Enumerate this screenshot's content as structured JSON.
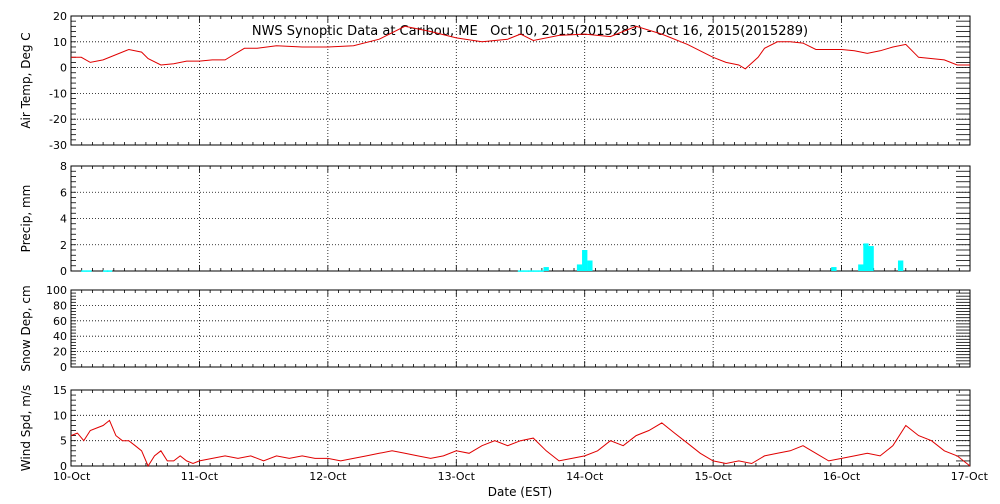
{
  "title": "NWS Synoptic Data at Caribou, ME   Oct 10, 2015(2015283) - Oct 16, 2015(2015289)",
  "x_axis": {
    "label": "Date (EST)",
    "tick_labels": [
      "10-Oct",
      "11-Oct",
      "12-Oct",
      "13-Oct",
      "14-Oct",
      "15-Oct",
      "16-Oct",
      "17-Oct"
    ],
    "range_days": [
      0,
      7
    ]
  },
  "colors": {
    "temp": "#e00000",
    "precip": "#00ffff",
    "wind": "#e00000",
    "axis": "#000000",
    "background": "#ffffff"
  },
  "chart_data": [
    {
      "type": "line",
      "ylabel": "Air Temp, Deg C",
      "ylim": [
        -30,
        20
      ],
      "yticks": [
        -30,
        -20,
        -10,
        0,
        10,
        20
      ],
      "grid": true,
      "series": [
        {
          "x": [
            0,
            0.08,
            0.15,
            0.25,
            0.45,
            0.55,
            0.6,
            0.7,
            0.8,
            0.9,
            1.0,
            1.1,
            1.2,
            1.25,
            1.35,
            1.45,
            1.6,
            1.8,
            2.0,
            2.2,
            2.4,
            2.6,
            2.8,
            3.0,
            3.2,
            3.4,
            3.5,
            3.6,
            3.8,
            4.0,
            4.2,
            4.4,
            4.6,
            4.8,
            5.0,
            5.1,
            5.2,
            5.25,
            5.35,
            5.4,
            5.5,
            5.6,
            5.7,
            5.8,
            5.9,
            6.0,
            6.1,
            6.2,
            6.3,
            6.4,
            6.5,
            6.6,
            6.8,
            6.9,
            7.0
          ],
          "y": [
            4,
            4,
            2,
            3,
            7,
            6,
            3.5,
            1,
            1.5,
            2.5,
            2.5,
            3,
            3,
            4.5,
            7.5,
            7.5,
            8.5,
            8,
            8,
            8.5,
            11,
            16,
            14,
            11.5,
            10,
            11,
            13,
            10.5,
            12.5,
            13,
            12,
            16,
            13,
            9,
            4,
            2,
            1,
            -0.5,
            4,
            7.5,
            10,
            10,
            9.5,
            7,
            7,
            7,
            6.5,
            5.5,
            6.5,
            8,
            9,
            4,
            3,
            1,
            1
          ]
        }
      ]
    },
    {
      "type": "bar",
      "ylabel": "Precip, mm",
      "ylim": [
        0,
        8
      ],
      "yticks": [
        0,
        2,
        4,
        6,
        8
      ],
      "grid": true,
      "bar_width_days": 0.0417,
      "x": [
        0.1,
        0.14,
        0.27,
        0.3,
        3.5,
        3.54,
        3.58,
        3.62,
        3.66,
        3.7,
        3.96,
        4.0,
        4.04,
        5.94,
        6.15,
        6.19,
        6.23,
        6.46
      ],
      "values": [
        0.05,
        0.05,
        0.05,
        0.05,
        0.05,
        0.05,
        0.05,
        0.05,
        0.05,
        0.3,
        0.5,
        1.6,
        0.8,
        0.3,
        0.5,
        2.1,
        1.9,
        0.8
      ]
    },
    {
      "type": "line",
      "ylabel": "Snow Dep, cm",
      "ylim": [
        0,
        100
      ],
      "yticks": [
        0,
        20,
        40,
        60,
        80,
        100
      ],
      "grid": true,
      "series": []
    },
    {
      "type": "line",
      "ylabel": "Wind Spd, m/s",
      "ylim": [
        0,
        15
      ],
      "yticks": [
        0,
        5,
        10,
        15
      ],
      "grid": true,
      "series": [
        {
          "x": [
            0,
            0.05,
            0.1,
            0.15,
            0.2,
            0.25,
            0.3,
            0.35,
            0.4,
            0.45,
            0.5,
            0.55,
            0.6,
            0.65,
            0.7,
            0.75,
            0.8,
            0.85,
            0.9,
            0.95,
            1.0,
            1.1,
            1.2,
            1.3,
            1.4,
            1.5,
            1.6,
            1.7,
            1.8,
            1.9,
            2.0,
            2.1,
            2.2,
            2.3,
            2.4,
            2.5,
            2.6,
            2.7,
            2.8,
            2.9,
            3.0,
            3.1,
            3.2,
            3.3,
            3.4,
            3.5,
            3.6,
            3.7,
            3.8,
            3.9,
            4.0,
            4.1,
            4.2,
            4.3,
            4.4,
            4.5,
            4.6,
            4.7,
            4.8,
            4.9,
            5.0,
            5.1,
            5.2,
            5.3,
            5.4,
            5.5,
            5.6,
            5.7,
            5.8,
            5.9,
            6.0,
            6.1,
            6.2,
            6.3,
            6.4,
            6.5,
            6.6,
            6.7,
            6.8,
            6.9,
            7.0
          ],
          "y": [
            6,
            6.5,
            5,
            7,
            7.5,
            8,
            9,
            6,
            5,
            5,
            4,
            3,
            0,
            2,
            3,
            1,
            1,
            2,
            1,
            0.5,
            1,
            1.5,
            2,
            1.5,
            2,
            1,
            2,
            1.5,
            2,
            1.5,
            1.5,
            1,
            1.5,
            2,
            2.5,
            3,
            2.5,
            2,
            1.5,
            2,
            3,
            2.5,
            4,
            5,
            4,
            5,
            5.5,
            3,
            1,
            1.5,
            2,
            3,
            5,
            4,
            6,
            7,
            8.5,
            6.5,
            4.5,
            2.5,
            1,
            0.5,
            1,
            0.5,
            2,
            2.5,
            3,
            4,
            2.5,
            1,
            1.5,
            2,
            2.5,
            2,
            4,
            8,
            6,
            5,
            3,
            2,
            0
          ]
        }
      ]
    }
  ]
}
